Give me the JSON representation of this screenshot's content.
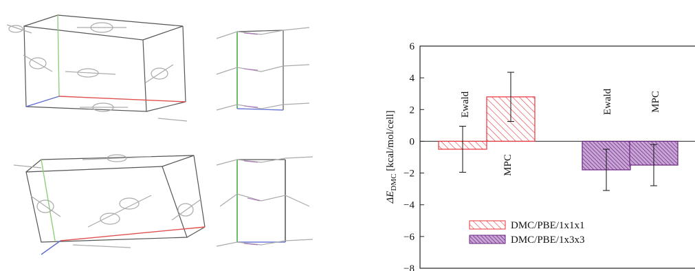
{
  "chart_data": {
    "type": "bar",
    "ylabel_prefix": "ΔE",
    "ylabel_sub": "DMC",
    "ylabel_suffix": " [kcal/mol/cell]",
    "ylim": [
      -8,
      6
    ],
    "yticks": [
      "6",
      "4",
      "2",
      "0",
      "−2",
      "−4",
      "−6",
      "−8"
    ],
    "grid": false,
    "legend_position": "bottom-left",
    "series": [
      {
        "name": "DMC/PBE/1x1x1",
        "color": "#e8323a",
        "bars": [
          {
            "label": "Ewald",
            "value": -0.5,
            "error": 1.45
          },
          {
            "label": "MPC",
            "value": 2.8,
            "error": 1.55
          }
        ]
      },
      {
        "name": "DMC/PBE/1x3x3",
        "color": "#7b2a8c",
        "bars": [
          {
            "label": "Ewald",
            "value": -1.8,
            "error": 1.3
          },
          {
            "label": "MPC",
            "value": -1.5,
            "error": 1.3
          }
        ]
      }
    ]
  },
  "structures": [
    {
      "id": "top-left"
    },
    {
      "id": "top-right"
    },
    {
      "id": "bottom-left"
    },
    {
      "id": "bottom-right"
    }
  ]
}
